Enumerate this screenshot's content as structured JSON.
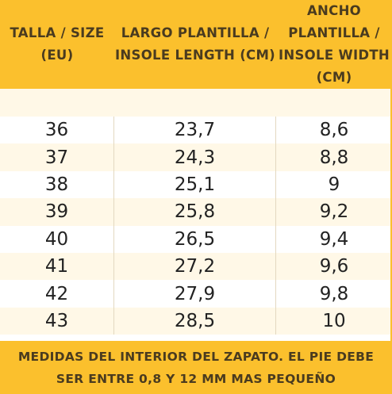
{
  "headers": [
    "TALLA / SIZE (EU)",
    "LARGO PLANTILLA / INSOLE LENGTH (CM)",
    "ANCHO PLANTILLA / INSOLE WIDTH (CM)"
  ],
  "rows": [
    [
      "36",
      "23,7",
      "8,6"
    ],
    [
      "37",
      "24,3",
      "8,8"
    ],
    [
      "38",
      "25,1",
      "9"
    ],
    [
      "39",
      "25,8",
      "9,2"
    ],
    [
      "40",
      "26,5",
      "9,4"
    ],
    [
      "41",
      "27,2",
      "9,6"
    ],
    [
      "42",
      "27,9",
      "9,8"
    ],
    [
      "43",
      "28,5",
      "10"
    ]
  ],
  "footer_note": "MEDIDAS DEL INTERIOR DEL ZAPATO. EL PIE DEBE SER ENTRE 0,8 Y 12 MM MAS PEQUEÑO",
  "colors": {
    "accent": "#fbc02d",
    "band": "#fff8e7",
    "text": "#4a3b1f"
  }
}
